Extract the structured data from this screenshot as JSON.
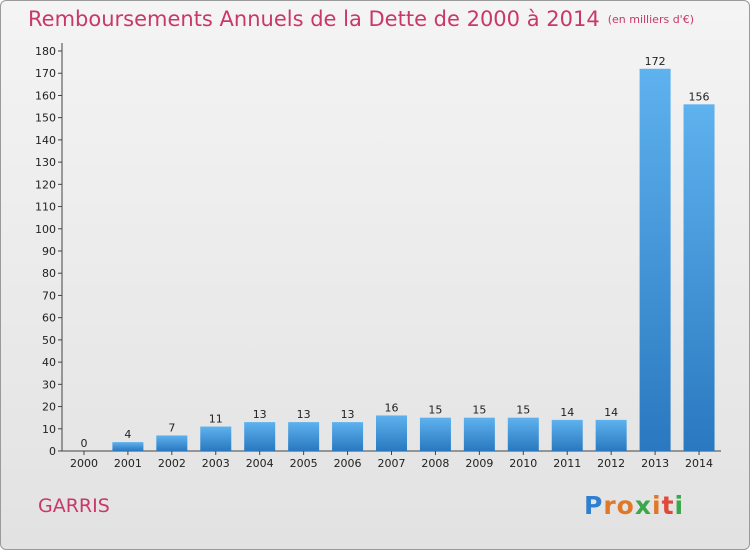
{
  "chart_data": {
    "type": "bar",
    "title": "Remboursements Annuels de la Dette de 2000 à 2014",
    "unit_label": "(en milliers d'€)",
    "categories": [
      "2000",
      "2001",
      "2002",
      "2003",
      "2004",
      "2005",
      "2006",
      "2007",
      "2008",
      "2009",
      "2010",
      "2011",
      "2012",
      "2013",
      "2014"
    ],
    "values": [
      0,
      4,
      7,
      11,
      13,
      13,
      13,
      16,
      15,
      15,
      15,
      14,
      14,
      172,
      156
    ],
    "ylim": [
      0,
      180
    ],
    "yticks": [
      0,
      10,
      20,
      30,
      40,
      50,
      60,
      70,
      80,
      90,
      100,
      110,
      120,
      130,
      140,
      150,
      160,
      170,
      180
    ],
    "grid": false,
    "bar_color": "#3a8fd6"
  },
  "footer": {
    "commune": "GARRIS",
    "logo": {
      "letters": [
        "P",
        "r",
        "o",
        "x",
        "i",
        "t",
        "i"
      ],
      "colors": [
        "#2f7fd0",
        "#e0782a",
        "#e0782a",
        "#3aa84a",
        "#e0782a",
        "#e04a3a",
        "#3aa84a"
      ]
    }
  }
}
